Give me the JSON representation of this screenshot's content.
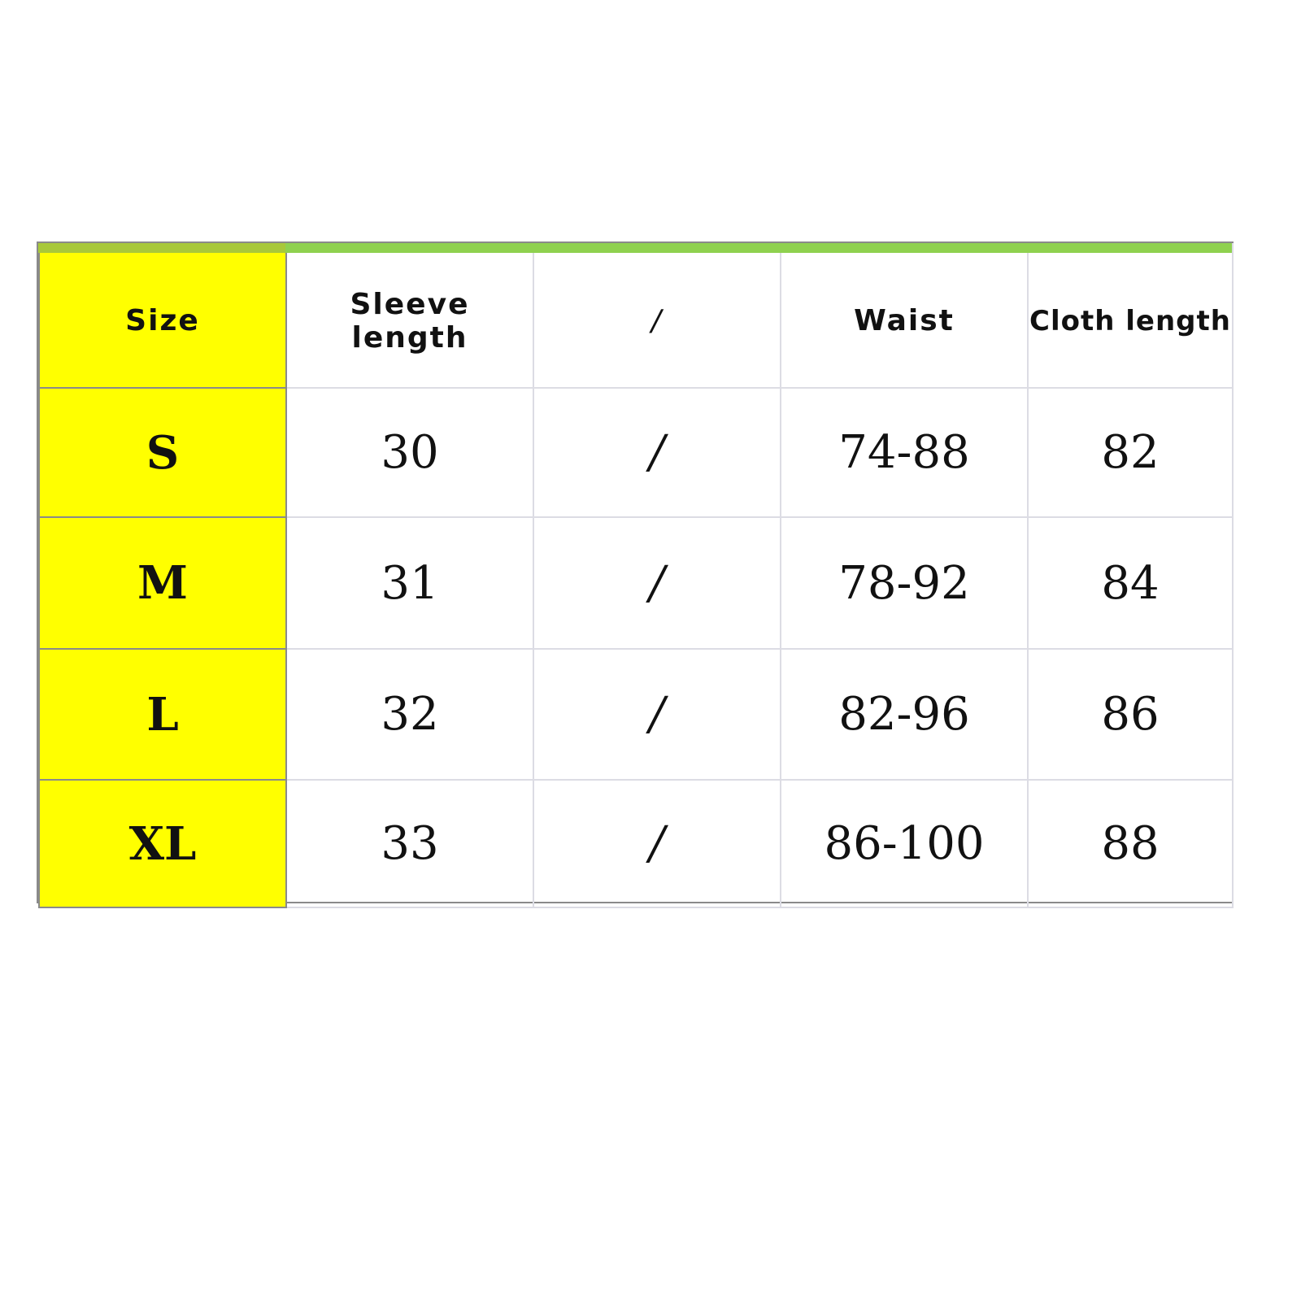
{
  "colors": {
    "size_column": "#ffff00",
    "header_bar": "#8fd14f",
    "border": "#8a8a8a"
  },
  "table": {
    "headers": [
      "Size",
      "Sleeve length",
      "/",
      "Waist",
      "Cloth length"
    ],
    "rows": [
      [
        "S",
        "30",
        "/",
        "74-88",
        "82"
      ],
      [
        "M",
        "31",
        "/",
        "78-92",
        "84"
      ],
      [
        "L",
        "32",
        "/",
        "82-96",
        "86"
      ],
      [
        "XL",
        "33",
        "/",
        "86-100",
        "88"
      ]
    ]
  }
}
